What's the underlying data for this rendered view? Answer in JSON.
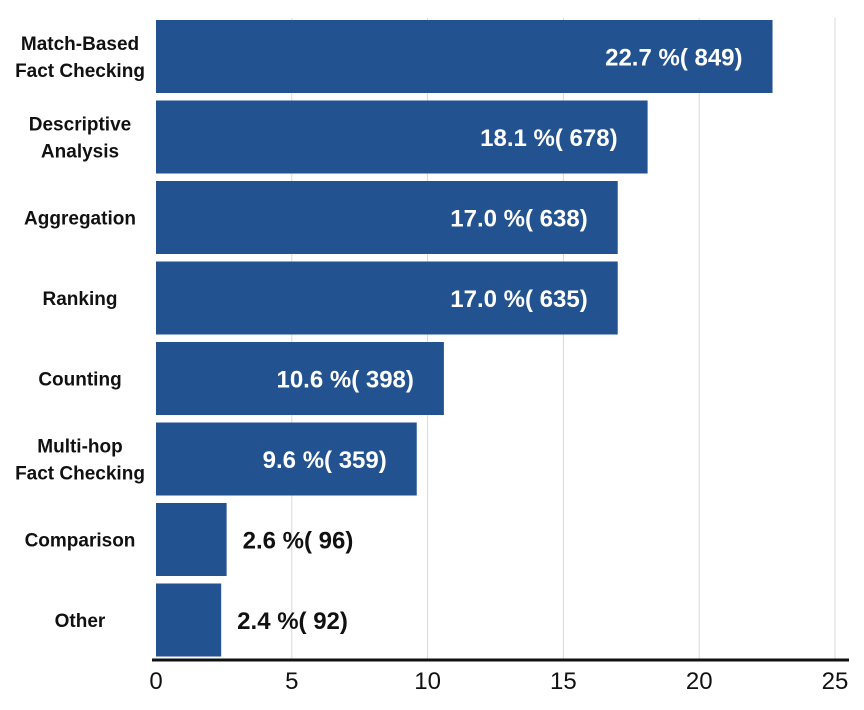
{
  "chart_data": {
    "type": "bar",
    "orientation": "horizontal",
    "categories": [
      [
        "Match-Based",
        "Fact Checking"
      ],
      [
        "Descriptive",
        "Analysis"
      ],
      [
        "Aggregation"
      ],
      [
        "Ranking"
      ],
      [
        "Counting"
      ],
      [
        "Multi-hop",
        "Fact Checking"
      ],
      [
        "Comparison"
      ],
      [
        "Other"
      ]
    ],
    "values": [
      22.7,
      18.1,
      17.0,
      17.0,
      10.6,
      9.6,
      2.6,
      2.4
    ],
    "counts": [
      849,
      678,
      638,
      635,
      398,
      359,
      96,
      92
    ],
    "data_labels": [
      "22.7 %( 849)",
      "18.1 %( 678)",
      "17.0 %( 638)",
      "17.0 %( 635)",
      "10.6 %( 398)",
      "9.6 %( 359)",
      "2.6 %( 96)",
      "2.4 %( 92)"
    ],
    "x_ticks": [
      "0",
      "5",
      "10",
      "15",
      "20",
      "25"
    ],
    "xlim": [
      0,
      25
    ],
    "grid": "vertical",
    "title": "",
    "xlabel": "",
    "ylabel": "",
    "colors": {
      "bar": "#22528F",
      "inside_label": "#ffffff",
      "outside_label": "#111111",
      "grid": "#d9d9d9",
      "axis": "#111111"
    }
  }
}
